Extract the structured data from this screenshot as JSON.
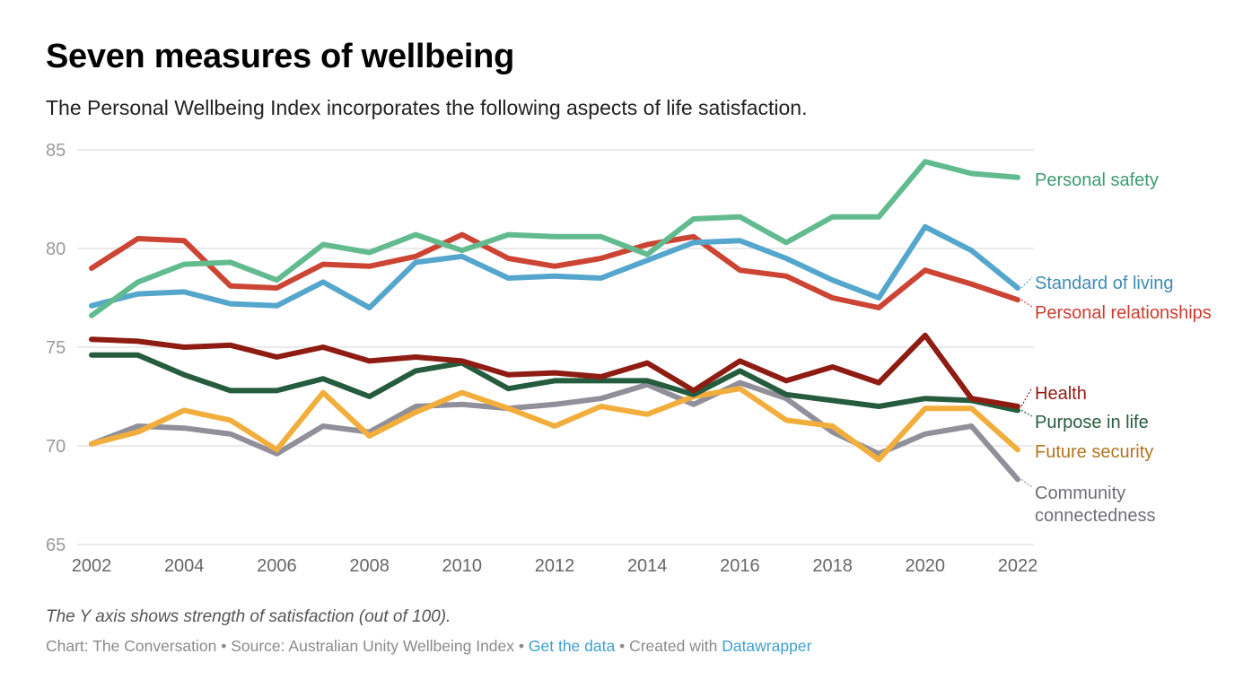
{
  "header": {
    "title": "Seven measures of wellbeing",
    "subtitle": "The Personal Wellbeing Index incorporates the following aspects of life satisfaction."
  },
  "footer": {
    "note": "The Y axis shows strength of satisfaction (out of 100).",
    "chart_credit": "Chart: The Conversation",
    "separator": " • ",
    "source": "Source: Australian Unity Wellbeing Index",
    "get_data_link": "Get the data",
    "created_with": "Created with",
    "datawrapper_link": "Datawrapper"
  },
  "chart_data": {
    "type": "line",
    "title": "Seven measures of wellbeing",
    "subtitle": "The Personal Wellbeing Index incorporates the following aspects of life satisfaction.",
    "xlabel": "",
    "ylabel": "",
    "x": [
      2002,
      2003,
      2004,
      2005,
      2006,
      2007,
      2008,
      2009,
      2010,
      2011,
      2012,
      2013,
      2014,
      2015,
      2016,
      2017,
      2018,
      2019,
      2020,
      2021,
      2022
    ],
    "xticks": [
      "2002",
      "2004",
      "2006",
      "2008",
      "2010",
      "2012",
      "2014",
      "2016",
      "2018",
      "2020",
      "2022"
    ],
    "yticks": [
      "65",
      "70",
      "75",
      "80",
      "85"
    ],
    "ylim": [
      65,
      85
    ],
    "xlim": [
      2002,
      2022
    ],
    "grid": "horizontal",
    "legend": "direct labels at line ends (right)",
    "series": [
      {
        "name": "Personal safety",
        "color": "#62bb8f",
        "label_color": "#3d9a6d",
        "values": [
          76.6,
          78.3,
          79.2,
          79.3,
          78.4,
          80.2,
          79.8,
          80.7,
          79.9,
          80.7,
          80.6,
          80.6,
          79.7,
          81.5,
          81.6,
          80.3,
          81.6,
          81.6,
          84.4,
          83.8,
          83.6
        ]
      },
      {
        "name": "Standard of living",
        "color": "#55a6cc",
        "label_color": "#3f8bb3",
        "values": [
          77.1,
          77.7,
          77.8,
          77.2,
          77.1,
          78.3,
          77.0,
          79.3,
          79.6,
          78.5,
          78.6,
          78.5,
          79.4,
          80.3,
          80.4,
          79.5,
          78.4,
          77.5,
          81.1,
          79.9,
          78.0
        ]
      },
      {
        "name": "Personal relationships",
        "color": "#cc4433",
        "label_color": "#cc3b2e",
        "values": [
          79.0,
          80.5,
          80.4,
          78.1,
          78.0,
          79.2,
          79.1,
          79.6,
          80.7,
          79.5,
          79.1,
          79.5,
          80.2,
          80.6,
          78.9,
          78.6,
          77.5,
          77.0,
          78.9,
          78.2,
          77.4
        ]
      },
      {
        "name": "Health",
        "color": "#8e1c12",
        "label_color": "#8e1c12",
        "values": [
          75.4,
          75.3,
          75.0,
          75.1,
          74.5,
          75.0,
          74.3,
          74.5,
          74.3,
          73.6,
          73.7,
          73.5,
          74.2,
          72.8,
          74.3,
          73.3,
          74.0,
          73.2,
          75.6,
          72.4,
          72.0
        ]
      },
      {
        "name": "Purpose in life",
        "color": "#255c3e",
        "label_color": "#255c3e",
        "values": [
          74.6,
          74.6,
          73.6,
          72.8,
          72.8,
          73.4,
          72.5,
          73.8,
          74.2,
          72.9,
          73.3,
          73.3,
          73.3,
          72.6,
          73.8,
          72.6,
          72.3,
          72.0,
          72.4,
          72.3,
          71.8
        ]
      },
      {
        "name": "Future security",
        "color": "#f2ae3d",
        "label_color": "#b07521",
        "values": [
          70.1,
          70.7,
          71.8,
          71.3,
          69.8,
          72.7,
          70.5,
          71.7,
          72.7,
          71.9,
          71.0,
          72.0,
          71.6,
          72.5,
          72.9,
          71.3,
          71.0,
          69.3,
          71.9,
          71.9,
          69.8
        ]
      },
      {
        "name": "Community connectedness",
        "label_lines": [
          "Community",
          "connectedness"
        ],
        "color": "#908f9a",
        "label_color": "#6f6e78",
        "values": [
          70.1,
          71.0,
          70.9,
          70.6,
          69.6,
          71.0,
          70.7,
          72.0,
          72.1,
          71.9,
          72.1,
          72.4,
          73.1,
          72.1,
          73.2,
          72.4,
          70.7,
          69.6,
          70.6,
          71.0,
          68.3
        ]
      }
    ]
  }
}
